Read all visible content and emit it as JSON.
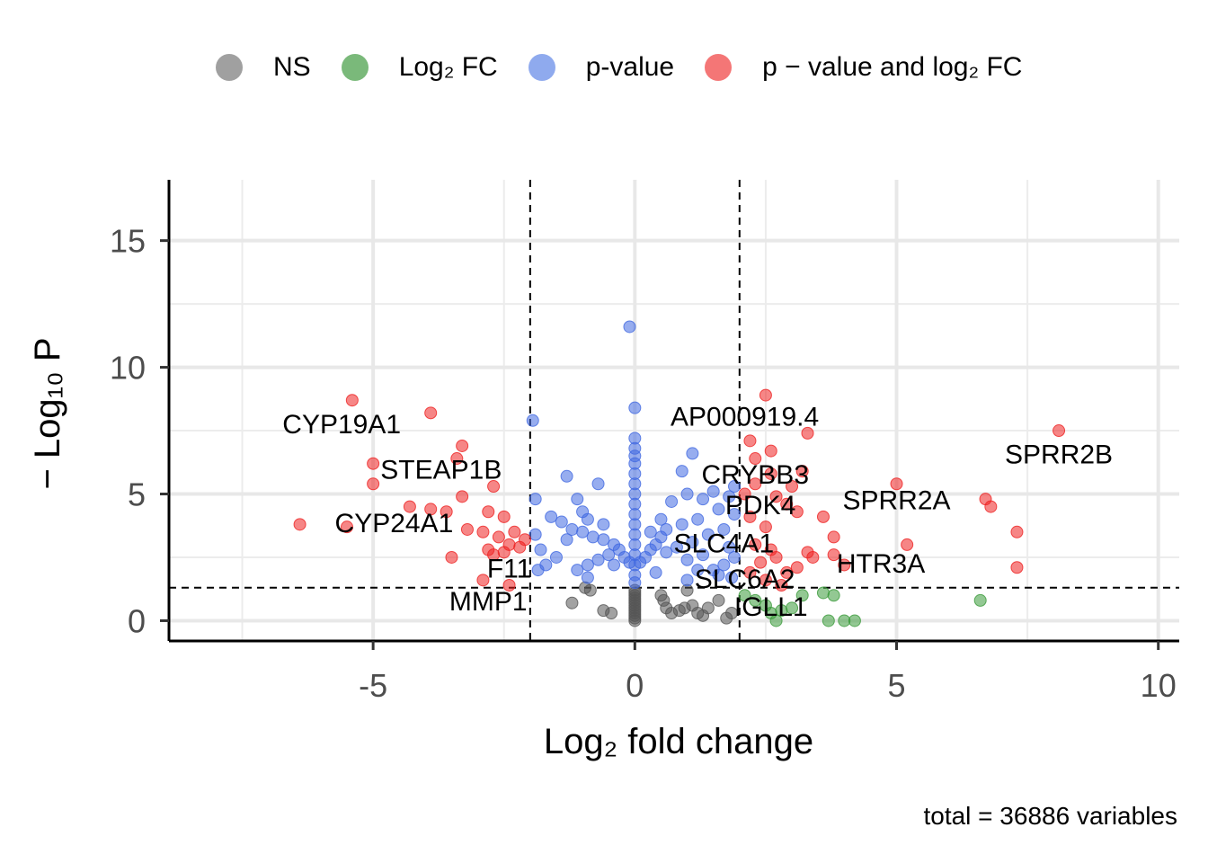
{
  "legend": [
    {
      "label": "NS",
      "color": "#808080"
    },
    {
      "label": "Log₂ FC",
      "color": "#4ea24e"
    },
    {
      "label": "p-value",
      "color": "#6a8ee8"
    },
    {
      "label": "p − value and log₂ FC",
      "color": "#f04848"
    }
  ],
  "caption": "total = 36886 variables",
  "chart_data": {
    "type": "scatter",
    "xlabel": "Log₂ fold change",
    "ylabel": "− Log₁₀ P",
    "xlim": [
      -8.9,
      10.4
    ],
    "ylim": [
      -0.8,
      17.4
    ],
    "xticks": [
      -5,
      0,
      5,
      10
    ],
    "yticks": [
      0,
      5,
      10,
      15
    ],
    "grid": true,
    "legend_position": "top",
    "cutoffs": {
      "log2fc": [
        -2,
        2
      ],
      "neglog10p": 1.3
    },
    "colors": {
      "NS": "#555555",
      "Log2FC": "#3a9a3a",
      "pvalue": "#4169e1",
      "both": "#ee2222"
    },
    "series": [
      {
        "key": "NS",
        "points": [
          [
            -0.95,
            1.3
          ],
          [
            -0.85,
            1.2
          ],
          [
            -1.2,
            0.7
          ],
          [
            -0.6,
            0.4
          ],
          [
            -0.45,
            0.3
          ],
          [
            0.55,
            0.8
          ],
          [
            0.6,
            0.5
          ],
          [
            0.7,
            0.3
          ],
          [
            0.85,
            0.4
          ],
          [
            0.95,
            0.5
          ],
          [
            1.1,
            0.6
          ],
          [
            1.2,
            0.3
          ],
          [
            1.3,
            0.2
          ],
          [
            1.4,
            0.5
          ],
          [
            1.6,
            0.8
          ],
          [
            1.75,
            0.1
          ],
          [
            1.85,
            0.3
          ],
          [
            0.5,
            1.0
          ],
          [
            1.0,
            1.2
          ],
          [
            0.0,
            0.0
          ],
          [
            0.0,
            0.1
          ],
          [
            0.0,
            0.2
          ],
          [
            0.0,
            0.3
          ],
          [
            0.0,
            0.4
          ],
          [
            0.0,
            0.5
          ],
          [
            0.0,
            0.6
          ],
          [
            0.0,
            0.7
          ],
          [
            0.0,
            0.8
          ],
          [
            0.0,
            0.9
          ],
          [
            0.0,
            1.0
          ],
          [
            0.0,
            1.1
          ],
          [
            0.0,
            1.2
          ]
        ]
      },
      {
        "key": "Log2FC",
        "points": [
          [
            2.1,
            1.0
          ],
          [
            2.3,
            0.8
          ],
          [
            2.5,
            0.6
          ],
          [
            2.6,
            0.3
          ],
          [
            2.8,
            0.4
          ],
          [
            3.0,
            0.5
          ],
          [
            3.2,
            1.0
          ],
          [
            3.6,
            1.1
          ],
          [
            3.8,
            1.0
          ],
          [
            3.7,
            0.0
          ],
          [
            4.0,
            0.0
          ],
          [
            4.2,
            0.0
          ],
          [
            6.6,
            0.8
          ],
          [
            2.7,
            0.0
          ]
        ]
      },
      {
        "key": "pvalue",
        "points": [
          [
            -0.1,
            11.6
          ],
          [
            0.0,
            8.4
          ],
          [
            -1.95,
            7.9
          ],
          [
            1.1,
            6.6
          ],
          [
            0.9,
            5.9
          ],
          [
            0.0,
            7.2
          ],
          [
            0.0,
            6.8
          ],
          [
            0.0,
            6.5
          ],
          [
            0.0,
            6.2
          ],
          [
            0.0,
            5.8
          ],
          [
            0.0,
            5.4
          ],
          [
            0.0,
            5.0
          ],
          [
            0.0,
            4.6
          ],
          [
            0.0,
            4.2
          ],
          [
            0.0,
            3.8
          ],
          [
            0.0,
            3.4
          ],
          [
            0.0,
            3.0
          ],
          [
            0.0,
            2.6
          ],
          [
            0.0,
            2.2
          ],
          [
            0.0,
            1.8
          ],
          [
            0.0,
            1.5
          ],
          [
            -1.3,
            5.7
          ],
          [
            -0.7,
            5.4
          ],
          [
            -1.1,
            4.8
          ],
          [
            -1.9,
            4.8
          ],
          [
            -1.6,
            4.1
          ],
          [
            -1.4,
            3.9
          ],
          [
            -1.2,
            3.6
          ],
          [
            -1.0,
            3.5
          ],
          [
            -0.8,
            3.3
          ],
          [
            -0.6,
            3.2
          ],
          [
            -0.4,
            3.0
          ],
          [
            -0.3,
            2.8
          ],
          [
            -0.5,
            2.6
          ],
          [
            -0.7,
            2.4
          ],
          [
            -0.9,
            2.2
          ],
          [
            -1.1,
            2.0
          ],
          [
            -1.5,
            2.5
          ],
          [
            -1.8,
            2.8
          ],
          [
            -1.9,
            3.4
          ],
          [
            -1.3,
            3.2
          ],
          [
            -0.2,
            2.5
          ],
          [
            -0.1,
            2.3
          ],
          [
            -0.6,
            3.8
          ],
          [
            -0.9,
            4.0
          ],
          [
            -1.0,
            4.3
          ],
          [
            -0.4,
            2.2
          ],
          [
            -1.7,
            2.2
          ],
          [
            -1.85,
            2.0
          ],
          [
            -0.9,
            1.7
          ],
          [
            1.5,
            5.1
          ],
          [
            1.0,
            5.0
          ],
          [
            1.3,
            4.8
          ],
          [
            0.7,
            4.7
          ],
          [
            1.6,
            4.4
          ],
          [
            1.9,
            4.2
          ],
          [
            1.2,
            4.0
          ],
          [
            0.9,
            3.8
          ],
          [
            0.6,
            3.6
          ],
          [
            0.5,
            3.3
          ],
          [
            0.4,
            3.0
          ],
          [
            0.3,
            2.8
          ],
          [
            0.2,
            2.5
          ],
          [
            0.1,
            2.3
          ],
          [
            1.7,
            3.6
          ],
          [
            1.4,
            3.4
          ],
          [
            1.1,
            3.1
          ],
          [
            0.8,
            2.9
          ],
          [
            0.6,
            2.7
          ],
          [
            1.8,
            2.9
          ],
          [
            1.9,
            2.5
          ],
          [
            1.7,
            2.2
          ],
          [
            1.5,
            2.0
          ],
          [
            1.6,
            1.8
          ],
          [
            1.3,
            2.6
          ],
          [
            1.0,
            2.4
          ],
          [
            1.9,
            5.3
          ],
          [
            1.8,
            4.9
          ],
          [
            0.3,
            3.5
          ],
          [
            0.5,
            4.0
          ],
          [
            1.2,
            2.0
          ],
          [
            1.85,
            1.7
          ],
          [
            0.4,
            1.9
          ],
          [
            1.0,
            1.6
          ]
        ]
      },
      {
        "key": "both",
        "points": [
          [
            -5.4,
            8.7
          ],
          [
            -3.9,
            8.2
          ],
          [
            -3.3,
            6.9
          ],
          [
            -3.4,
            6.4
          ],
          [
            -5.0,
            6.2
          ],
          [
            -5.0,
            5.4
          ],
          [
            -2.7,
            5.3
          ],
          [
            -3.3,
            4.9
          ],
          [
            -4.3,
            4.5
          ],
          [
            -3.9,
            4.4
          ],
          [
            -3.6,
            4.3
          ],
          [
            -2.8,
            4.3
          ],
          [
            -2.5,
            4.1
          ],
          [
            -6.4,
            3.8
          ],
          [
            -5.5,
            3.7
          ],
          [
            -3.2,
            3.6
          ],
          [
            -2.9,
            3.5
          ],
          [
            -2.6,
            3.3
          ],
          [
            -2.3,
            3.5
          ],
          [
            -2.4,
            3.0
          ],
          [
            -2.1,
            3.2
          ],
          [
            -2.8,
            2.8
          ],
          [
            -2.5,
            2.7
          ],
          [
            -2.2,
            2.9
          ],
          [
            -3.5,
            2.5
          ],
          [
            -2.7,
            2.6
          ],
          [
            -2.9,
            1.6
          ],
          [
            -2.4,
            1.4
          ],
          [
            2.5,
            8.9
          ],
          [
            3.3,
            7.4
          ],
          [
            2.2,
            7.1
          ],
          [
            2.6,
            6.7
          ],
          [
            2.3,
            6.4
          ],
          [
            2.6,
            5.8
          ],
          [
            3.2,
            5.9
          ],
          [
            2.3,
            5.4
          ],
          [
            2.1,
            5.0
          ],
          [
            2.7,
            4.9
          ],
          [
            2.9,
            4.6
          ],
          [
            3.1,
            4.3
          ],
          [
            2.2,
            4.1
          ],
          [
            2.5,
            3.7
          ],
          [
            3.6,
            4.1
          ],
          [
            3.8,
            3.3
          ],
          [
            2.3,
            3.0
          ],
          [
            2.6,
            2.8
          ],
          [
            3.3,
            2.7
          ],
          [
            3.8,
            2.6
          ],
          [
            2.4,
            2.3
          ],
          [
            2.7,
            2.5
          ],
          [
            3.1,
            2.1
          ],
          [
            2.5,
            1.6
          ],
          [
            2.8,
            1.4
          ],
          [
            5.0,
            5.4
          ],
          [
            5.2,
            3.0
          ],
          [
            6.7,
            4.8
          ],
          [
            6.8,
            4.5
          ],
          [
            7.3,
            3.5
          ],
          [
            7.3,
            2.1
          ],
          [
            8.1,
            7.5
          ],
          [
            4.0,
            2.2
          ],
          [
            3.4,
            2.5
          ],
          [
            2.2,
            1.9
          ],
          [
            2.9,
            1.9
          ],
          [
            3.0,
            5.3
          ]
        ]
      }
    ],
    "labels": [
      {
        "text": "CYP19A1",
        "x": -5.6,
        "y": 7.4
      },
      {
        "text": "STEAP1B",
        "x": -3.7,
        "y": 5.6
      },
      {
        "text": "CYP24A1",
        "x": -4.6,
        "y": 3.5
      },
      {
        "text": "F11",
        "x": -2.4,
        "y": 1.7
      },
      {
        "text": "MMP1",
        "x": -2.8,
        "y": 0.4
      },
      {
        "text": "AP000919.4",
        "x": 2.1,
        "y": 7.7
      },
      {
        "text": "CRYBB3",
        "x": 2.3,
        "y": 5.4
      },
      {
        "text": "PDK4",
        "x": 2.4,
        "y": 4.2
      },
      {
        "text": "SPRR2A",
        "x": 5.0,
        "y": 4.4
      },
      {
        "text": "SPRR2B",
        "x": 8.1,
        "y": 6.2
      },
      {
        "text": "SLC4A1",
        "x": 1.7,
        "y": 2.7
      },
      {
        "text": "SLC6A2",
        "x": 2.1,
        "y": 1.3
      },
      {
        "text": "HTR3A",
        "x": 4.7,
        "y": 1.9
      },
      {
        "text": "IGLL1",
        "x": 2.6,
        "y": 0.2
      }
    ]
  }
}
